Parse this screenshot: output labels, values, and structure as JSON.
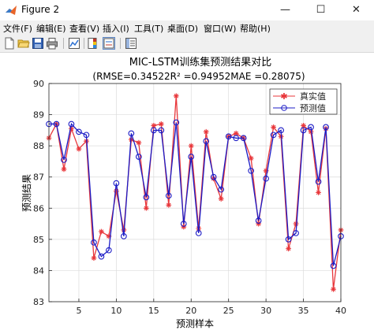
{
  "window": {
    "title": "Figure 2",
    "minimize": "—",
    "maximize": "☐",
    "close": "✕"
  },
  "menu": [
    "文件(F)",
    "编辑(E)",
    "查看(V)",
    "插入(I)",
    "工具(T)",
    "桌面(D)",
    "窗口(W)",
    "帮助(H)"
  ],
  "toolbar": [
    {
      "name": "new-figure-icon"
    },
    {
      "name": "open-file-icon"
    },
    {
      "name": "save-icon"
    },
    {
      "name": "print-icon"
    },
    {
      "name": "link-plot-icon"
    },
    {
      "name": "colorbar-icon"
    },
    {
      "name": "legend-icon"
    },
    {
      "name": "property-editor-icon"
    }
  ],
  "colors": {
    "true": "#e8373b",
    "pred": "#1c1cc6",
    "titlebar": "#ffffff",
    "axes": "#262626"
  },
  "chart_data": {
    "type": "line",
    "title_line1": "MIC-LSTM训练集预测结果对比",
    "title_line2": "(RMSE=0.34522R² =0.94952MAE =0.28075)",
    "xlabel": "预测样本",
    "ylabel": "预测结果",
    "xlim": [
      1,
      40
    ],
    "ylim": [
      83,
      90
    ],
    "xticks": [
      5,
      10,
      15,
      20,
      25,
      30,
      35,
      40
    ],
    "yticks": [
      83,
      84,
      85,
      86,
      87,
      88,
      89,
      90
    ],
    "legend_position": "top-right",
    "x": [
      1,
      2,
      3,
      4,
      5,
      6,
      7,
      8,
      9,
      10,
      11,
      12,
      13,
      14,
      15,
      16,
      17,
      18,
      19,
      20,
      21,
      22,
      23,
      24,
      25,
      26,
      27,
      28,
      29,
      30,
      31,
      32,
      33,
      34,
      35,
      36,
      37,
      38,
      39,
      40
    ],
    "series": [
      {
        "name": "真实值",
        "marker": "star",
        "values": [
          88.25,
          88.7,
          87.25,
          88.55,
          87.9,
          88.15,
          84.4,
          85.25,
          85.1,
          86.55,
          85.3,
          88.2,
          88.1,
          86.0,
          88.65,
          88.7,
          86.1,
          89.6,
          85.4,
          88.0,
          85.35,
          88.45,
          86.95,
          86.3,
          88.3,
          88.4,
          88.25,
          87.6,
          85.5,
          87.2,
          88.6,
          88.3,
          84.7,
          85.5,
          88.65,
          88.45,
          86.5,
          88.55,
          83.4,
          85.3
        ]
      },
      {
        "name": "预测值",
        "marker": "circle",
        "values": [
          88.7,
          88.7,
          87.55,
          88.7,
          88.45,
          88.35,
          84.9,
          84.45,
          84.65,
          86.8,
          85.1,
          88.4,
          87.65,
          86.35,
          88.5,
          88.5,
          86.4,
          88.75,
          85.5,
          87.65,
          85.2,
          88.15,
          87.0,
          86.6,
          88.3,
          88.25,
          88.25,
          87.2,
          85.6,
          86.95,
          88.35,
          88.5,
          85.0,
          85.2,
          88.5,
          88.6,
          86.85,
          88.6,
          84.15,
          85.1
        ]
      }
    ]
  }
}
